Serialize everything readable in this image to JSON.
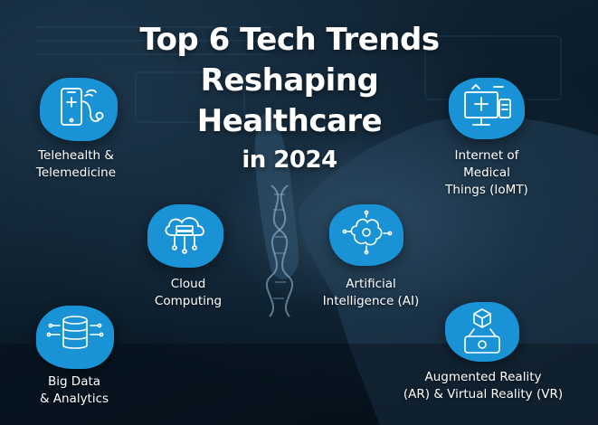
{
  "title": {
    "line1": "Top 6 Tech Trends",
    "line2": "Reshaping",
    "line3": "Healthcare",
    "line4": "in 2024"
  },
  "accent_color": "#1a93d6",
  "trends": [
    {
      "icon": "telehealth-phone-stethoscope-icon",
      "line1": "Telehealth &",
      "line2": "Telemedicine"
    },
    {
      "icon": "iomt-monitor-icon",
      "line1": "Internet of",
      "line2": "Medical",
      "line3": "Things (IoMT)"
    },
    {
      "icon": "cloud-computing-icon",
      "line1": "Cloud",
      "line2": "Computing"
    },
    {
      "icon": "ai-brain-icon",
      "line1": "Artificial",
      "line2": "Intelligence (AI)"
    },
    {
      "icon": "big-data-database-icon",
      "line1": "Big Data",
      "line2": "& Analytics"
    },
    {
      "icon": "ar-vr-cube-phone-icon",
      "line1": "Augmented Reality",
      "line2": "(AR) & Virtual Reality (VR)"
    }
  ]
}
